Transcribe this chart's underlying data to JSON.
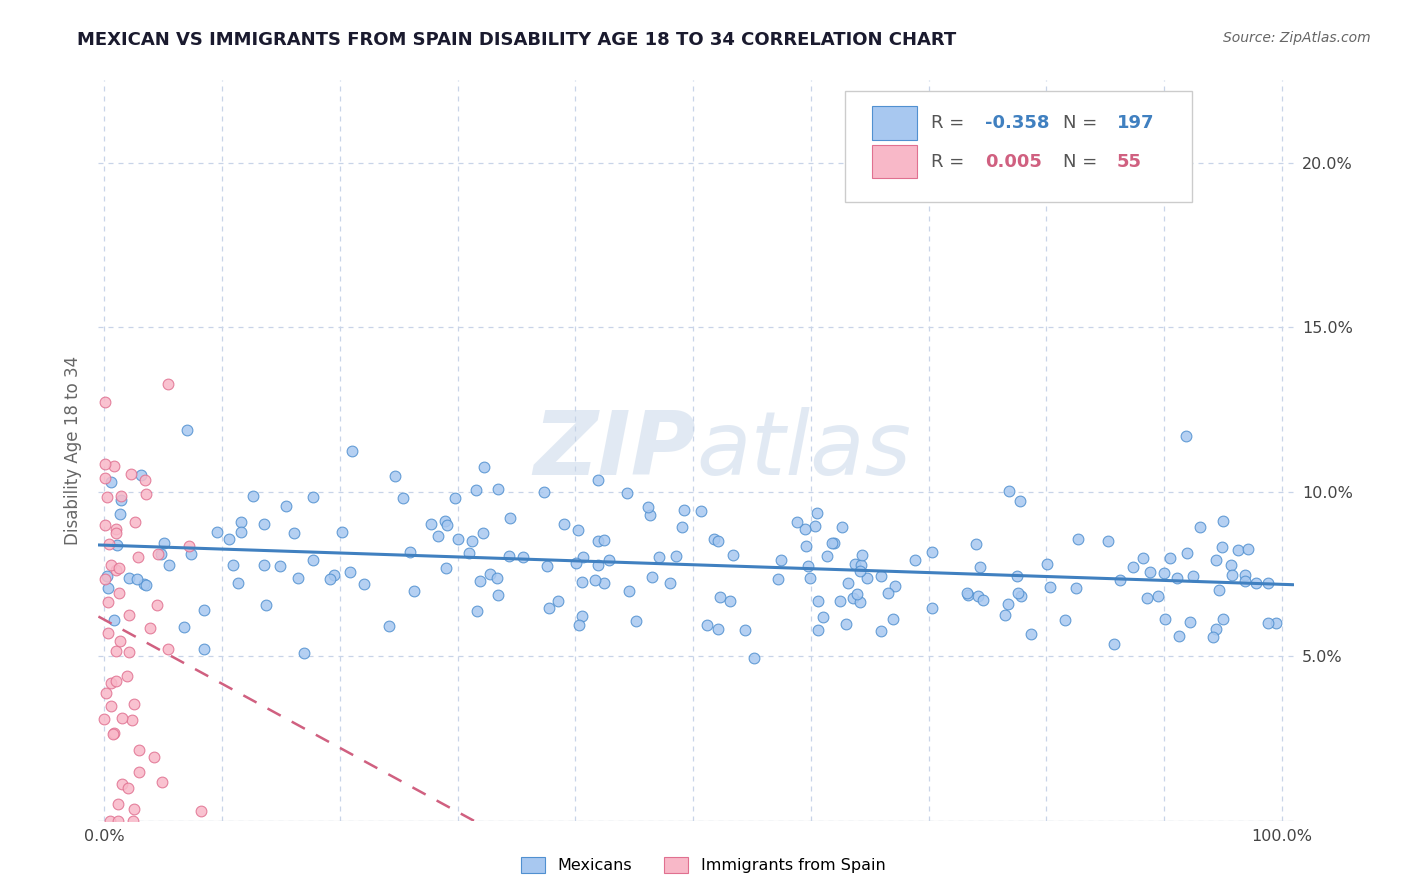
{
  "title": "MEXICAN VS IMMIGRANTS FROM SPAIN DISABILITY AGE 18 TO 34 CORRELATION CHART",
  "source": "Source: ZipAtlas.com",
  "ylabel": "Disability Age 18 to 34",
  "x_tick_labels": [
    "0.0%",
    "100.0%"
  ],
  "y_tick_labels": [
    "5.0%",
    "10.0%",
    "15.0%",
    "20.0%"
  ],
  "y_ticks": [
    0.05,
    0.1,
    0.15,
    0.2
  ],
  "blue_fill": "#a8c8f0",
  "blue_edge": "#5090d0",
  "blue_line": "#4080c0",
  "pink_fill": "#f8b8c8",
  "pink_edge": "#e07090",
  "pink_line": "#d06080",
  "blue_R_text": "-0.358",
  "blue_N_text": "197",
  "pink_R_text": "0.005",
  "pink_N_text": "55",
  "legend_label_blue": "Mexicans",
  "legend_label_pink": "Immigrants from Spain",
  "watermark_zip": "ZIP",
  "watermark_atlas": "atlas",
  "background_color": "#ffffff",
  "grid_color": "#c8d4e8",
  "title_color": "#1a1a2e",
  "label_color": "#666666",
  "tick_color": "#444444",
  "blue_N": 197,
  "pink_N": 55,
  "blue_seed": 12,
  "pink_seed": 7,
  "blue_intercept": 0.083,
  "blue_slope": -0.01,
  "blue_noise": 0.013,
  "pink_intercept": 0.062,
  "pink_slope": 0.001,
  "pink_noise": 0.038
}
